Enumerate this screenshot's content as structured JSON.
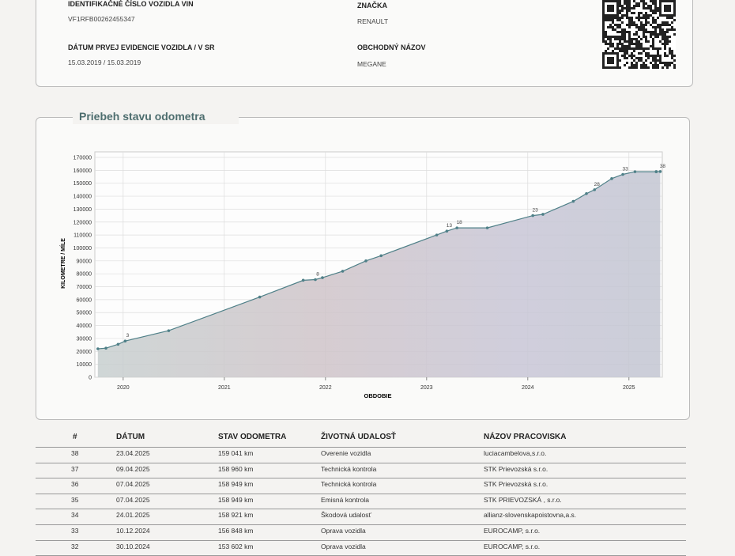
{
  "vehicle": {
    "vin_label": "IDENTIFIKAČNÉ ČÍSLO VOZIDLA VIN",
    "vin": "VF1RFB00262455347",
    "brand_label": "ZNAČKA",
    "brand": "RENAULT",
    "registration_label": "DÁTUM PRVEJ EVIDENCIE VOZIDLA / V SR",
    "registration": "15.03.2019 / 15.03.2019",
    "model_label": "OBCHODNÝ NÁZOV",
    "model": "MEGANE"
  },
  "chart_data": {
    "type": "area",
    "title": "Priebeh stavu odometra",
    "x_label": "OBDOBIE",
    "y_label": "KILOMETRE / MÍLE",
    "color": "#4f8088",
    "grid": true,
    "x": [
      2019.75,
      2019.83,
      2019.95,
      2020.02,
      2020.45,
      2021.35,
      2021.78,
      2021.9,
      2021.97,
      2022.17,
      2022.4,
      2022.55,
      2023.1,
      2023.2,
      2023.3,
      2023.6,
      2024.05,
      2024.15,
      2024.45,
      2024.58,
      2024.66,
      2024.83,
      2024.94,
      2025.06,
      2025.27,
      2025.27,
      2025.31
    ],
    "values": [
      22000,
      22500,
      25500,
      28000,
      36000,
      62000,
      75000,
      75500,
      77000,
      82000,
      90000,
      94000,
      110000,
      113000,
      115500,
      115500,
      125000,
      126000,
      136000,
      142000,
      145000,
      153602,
      156848,
      158921,
      158949,
      158960,
      159041
    ],
    "point_labels": [
      null,
      null,
      null,
      "3",
      null,
      null,
      null,
      "8",
      null,
      null,
      null,
      null,
      null,
      "13",
      "18",
      null,
      "23",
      null,
      null,
      null,
      "28",
      null,
      "33",
      null,
      null,
      null,
      "38"
    ],
    "xlim": [
      2019.72,
      2025.33
    ],
    "xticks": [
      2020,
      2021,
      2022,
      2023,
      2024,
      2025
    ],
    "ylim": [
      0,
      170000
    ],
    "yticks": [
      0,
      10000,
      20000,
      30000,
      40000,
      50000,
      60000,
      70000,
      80000,
      90000,
      100000,
      110000,
      120000,
      130000,
      140000,
      150000,
      160000,
      170000
    ]
  },
  "table": {
    "headers": [
      "#",
      "DÁTUM",
      "STAV ODOMETRA",
      "ŽIVOTNÁ UDALOSŤ",
      "NÁZOV PRACOVISKA"
    ],
    "rows": [
      [
        "38",
        "23.04.2025",
        "159 041 km",
        "Overenie vozidla",
        "luciacambelova,s.r.o."
      ],
      [
        "37",
        "09.04.2025",
        "158 960 km",
        "Technická kontrola",
        "STK Prievozská s.r.o."
      ],
      [
        "36",
        "07.04.2025",
        "158 949 km",
        "Technická kontrola",
        "STK Prievozská s.r.o."
      ],
      [
        "35",
        "07.04.2025",
        "158 949 km",
        "Emisná kontrola",
        "STK PRIEVOZSKÁ , s.r.o."
      ],
      [
        "34",
        "24.01.2025",
        "158 921 km",
        "Škodová udalosť",
        "allianz-slovenskapoistovna,a.s."
      ],
      [
        "33",
        "10.12.2024",
        "156 848 km",
        "Oprava vozidla",
        "EUROCAMP, s.r.o."
      ],
      [
        "32",
        "30.10.2024",
        "153 602 km",
        "Oprava vozidla",
        "EUROCAMP, s.r.o."
      ]
    ]
  }
}
